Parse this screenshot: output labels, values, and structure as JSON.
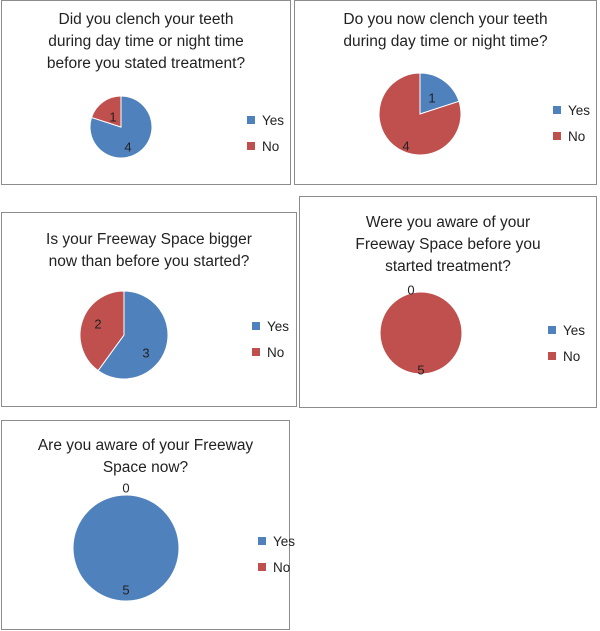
{
  "colors": {
    "yes": "#4f81bd",
    "no": "#c0504d",
    "edge": "#ffffff"
  },
  "chart_data": [
    {
      "type": "pie",
      "title": [
        "Did you clench your teeth",
        "during day time or night time",
        "before you stated treatment?"
      ],
      "categories": [
        "Yes",
        "No"
      ],
      "values": [
        4,
        1
      ],
      "legend": [
        "Yes",
        "No"
      ],
      "legend_position": "right"
    },
    {
      "type": "pie",
      "title": [
        "Do you now clench your teeth",
        "during day time or night time?"
      ],
      "categories": [
        "Yes",
        "No"
      ],
      "values": [
        1,
        4
      ],
      "legend": [
        "Yes",
        "No"
      ],
      "legend_position": "right"
    },
    {
      "type": "pie",
      "title": [
        "Is your Freeway Space bigger",
        "now than before you started?"
      ],
      "categories": [
        "Yes",
        "No"
      ],
      "values": [
        3,
        2
      ],
      "legend": [
        "Yes",
        "No"
      ],
      "legend_position": "right"
    },
    {
      "type": "pie",
      "title": [
        "Were you aware of your",
        "Freeway Space before you",
        "started treatment?"
      ],
      "categories": [
        "Yes",
        "No"
      ],
      "values": [
        0,
        5
      ],
      "legend": [
        "Yes",
        "No"
      ],
      "legend_position": "right"
    },
    {
      "type": "pie",
      "title": [
        "Are you aware of your Freeway",
        "Space now?"
      ],
      "categories": [
        "Yes",
        "No"
      ],
      "values": [
        5,
        0
      ],
      "legend": [
        "Yes",
        "No"
      ],
      "legend_position": "right"
    }
  ]
}
